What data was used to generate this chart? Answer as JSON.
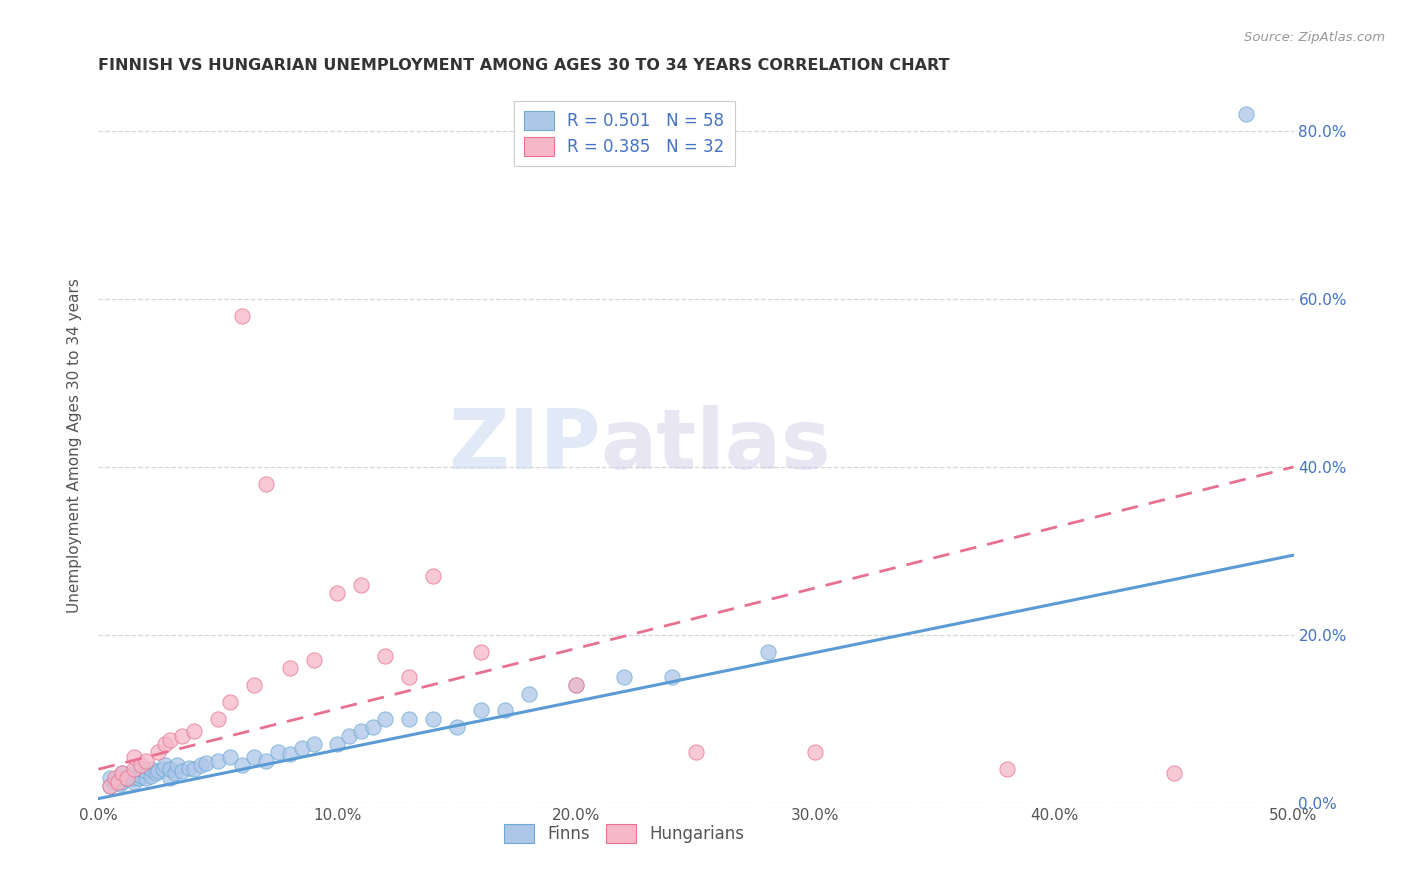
{
  "title": "FINNISH VS HUNGARIAN UNEMPLOYMENT AMONG AGES 30 TO 34 YEARS CORRELATION CHART",
  "source": "Source: ZipAtlas.com",
  "ylabel": "Unemployment Among Ages 30 to 34 years",
  "legend_label_1": "Finns",
  "legend_label_2": "Hungarians",
  "r1": 0.501,
  "n1": 58,
  "r2": 0.385,
  "n2": 32,
  "color_finn_fill": "#aec6e8",
  "color_finn_edge": "#6aaad4",
  "color_hungarian_fill": "#f4b8c8",
  "color_hungarian_edge": "#e87090",
  "color_finn_line": "#5b9bd5",
  "color_hungarian_line": "#e87090",
  "color_text_blue": "#4472c4",
  "background_color": "#ffffff",
  "grid_color": "#cccccc",
  "watermark_zip": "ZIP",
  "watermark_atlas": "atlas",
  "xlim": [
    0.0,
    0.5
  ],
  "ylim": [
    0.0,
    0.85
  ],
  "x_ticks": [
    0.0,
    0.1,
    0.2,
    0.3,
    0.4,
    0.5
  ],
  "y_ticks_right": [
    0.0,
    0.2,
    0.4,
    0.6,
    0.8
  ],
  "finn_x": [
    0.005,
    0.005,
    0.007,
    0.008,
    0.009,
    0.01,
    0.01,
    0.01,
    0.012,
    0.013,
    0.015,
    0.015,
    0.015,
    0.017,
    0.018,
    0.018,
    0.02,
    0.02,
    0.022,
    0.022,
    0.024,
    0.025,
    0.027,
    0.028,
    0.03,
    0.03,
    0.032,
    0.033,
    0.035,
    0.038,
    0.04,
    0.043,
    0.045,
    0.05,
    0.055,
    0.06,
    0.065,
    0.07,
    0.075,
    0.08,
    0.085,
    0.09,
    0.1,
    0.105,
    0.11,
    0.115,
    0.12,
    0.13,
    0.14,
    0.15,
    0.16,
    0.17,
    0.18,
    0.2,
    0.22,
    0.24,
    0.28,
    0.48
  ],
  "finn_y": [
    0.02,
    0.03,
    0.025,
    0.028,
    0.022,
    0.025,
    0.03,
    0.035,
    0.028,
    0.032,
    0.025,
    0.03,
    0.035,
    0.03,
    0.032,
    0.04,
    0.03,
    0.038,
    0.032,
    0.04,
    0.035,
    0.038,
    0.04,
    0.045,
    0.03,
    0.04,
    0.035,
    0.045,
    0.038,
    0.042,
    0.04,
    0.045,
    0.048,
    0.05,
    0.055,
    0.045,
    0.055,
    0.05,
    0.06,
    0.058,
    0.065,
    0.07,
    0.07,
    0.08,
    0.085,
    0.09,
    0.1,
    0.1,
    0.1,
    0.09,
    0.11,
    0.11,
    0.13,
    0.14,
    0.15,
    0.15,
    0.18,
    0.82
  ],
  "hungarian_x": [
    0.005,
    0.007,
    0.008,
    0.01,
    0.012,
    0.015,
    0.015,
    0.018,
    0.02,
    0.025,
    0.028,
    0.03,
    0.035,
    0.04,
    0.05,
    0.055,
    0.06,
    0.065,
    0.07,
    0.08,
    0.09,
    0.1,
    0.11,
    0.12,
    0.13,
    0.14,
    0.16,
    0.2,
    0.25,
    0.3,
    0.38,
    0.45
  ],
  "hungarian_y": [
    0.02,
    0.03,
    0.025,
    0.035,
    0.03,
    0.04,
    0.055,
    0.045,
    0.05,
    0.06,
    0.07,
    0.075,
    0.08,
    0.085,
    0.1,
    0.12,
    0.58,
    0.14,
    0.38,
    0.16,
    0.17,
    0.25,
    0.26,
    0.175,
    0.15,
    0.27,
    0.18,
    0.14,
    0.06,
    0.06,
    0.04,
    0.035
  ],
  "finn_trend_x": [
    0.0,
    0.5
  ],
  "finn_trend_y": [
    0.005,
    0.295
  ],
  "hung_trend_x": [
    0.0,
    0.5
  ],
  "hung_trend_y": [
    0.04,
    0.4
  ]
}
